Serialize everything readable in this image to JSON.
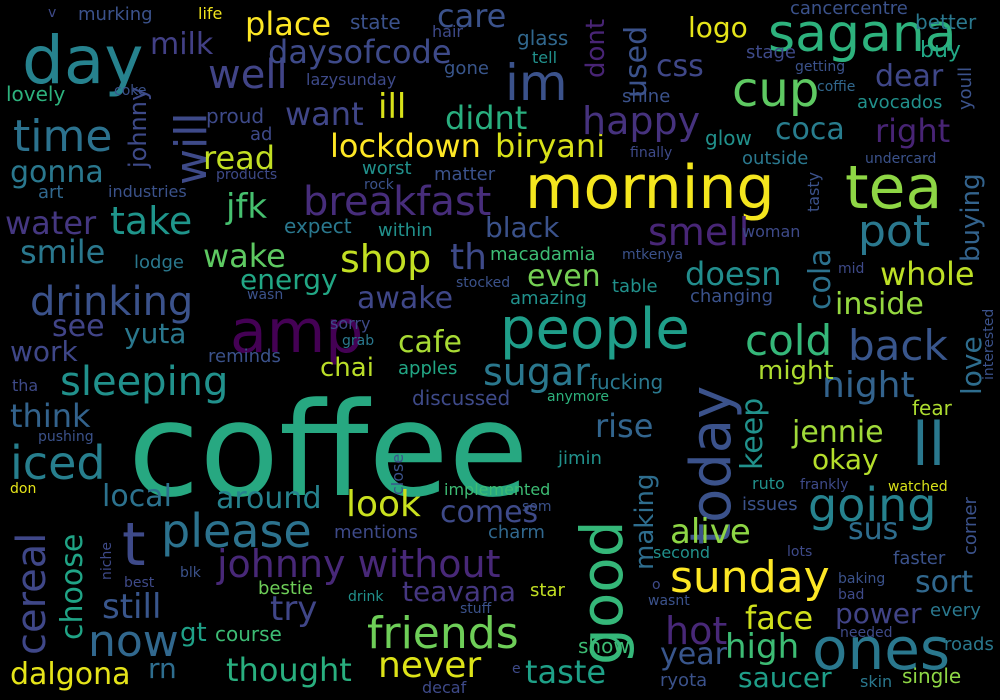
{
  "words": [
    {
      "text": "coffee",
      "color": "#27a881"
    },
    {
      "text": "morning",
      "color": "#f4e61e"
    },
    {
      "text": "tea",
      "color": "#8ed645"
    },
    {
      "text": "people",
      "color": "#1f9e89"
    },
    {
      "text": "day",
      "color": "#26828e"
    },
    {
      "text": "amp",
      "color": "#440154"
    },
    {
      "text": "sagana",
      "color": "#2db27d"
    },
    {
      "text": "good",
      "color": "#35b779"
    },
    {
      "text": "today",
      "color": "#3b528b"
    },
    {
      "text": "ones",
      "color": "#2a788e"
    },
    {
      "text": "sunday",
      "color": "#fde725"
    },
    {
      "text": "friends",
      "color": "#6ece58"
    },
    {
      "text": "please",
      "color": "#2c728e"
    },
    {
      "text": "t",
      "color": "#3e4a89"
    },
    {
      "text": "ll",
      "color": "#2a788e"
    },
    {
      "text": "going",
      "color": "#26828e"
    },
    {
      "text": "im",
      "color": "#3b528b"
    },
    {
      "text": "cup",
      "color": "#5ec962"
    },
    {
      "text": "time",
      "color": "#2c728e"
    },
    {
      "text": "breakfast",
      "color": "#472d7b"
    },
    {
      "text": "johnny without",
      "color": "#482878"
    },
    {
      "text": "well",
      "color": "#414487"
    },
    {
      "text": "will",
      "color": "#3e4a89"
    },
    {
      "text": "drinking",
      "color": "#3b528b"
    },
    {
      "text": "sleeping",
      "color": "#21918c"
    },
    {
      "text": "iced",
      "color": "#277f8e"
    },
    {
      "text": "now",
      "color": "#31688e"
    },
    {
      "text": "cereal",
      "color": "#3f4788"
    },
    {
      "text": "lockdown",
      "color": "#fde725"
    },
    {
      "text": "biryani",
      "color": "#d8e219"
    },
    {
      "text": "happy",
      "color": "#46327e"
    },
    {
      "text": "smell",
      "color": "#482677"
    },
    {
      "text": "pot",
      "color": "#2a788e"
    },
    {
      "text": "cold",
      "color": "#35b779"
    },
    {
      "text": "back",
      "color": "#39568c"
    },
    {
      "text": "night",
      "color": "#33638d"
    },
    {
      "text": "jennie",
      "color": "#a0da39"
    },
    {
      "text": "okay",
      "color": "#b5de2b"
    },
    {
      "text": "keep",
      "color": "#21918c"
    },
    {
      "text": "might",
      "color": "#addc30"
    },
    {
      "text": "love",
      "color": "#2e6d8e"
    },
    {
      "text": "inside",
      "color": "#95d840"
    },
    {
      "text": "whole",
      "color": "#bddf26"
    },
    {
      "text": "cola",
      "color": "#2c728e"
    },
    {
      "text": "coca",
      "color": "#287d8e"
    },
    {
      "text": "right",
      "color": "#482475"
    },
    {
      "text": "dear",
      "color": "#3f4788"
    },
    {
      "text": "buying",
      "color": "#33638d"
    },
    {
      "text": "take",
      "color": "#1f958b"
    },
    {
      "text": "jfk",
      "color": "#46c06f"
    },
    {
      "text": "shop",
      "color": "#c2df23"
    },
    {
      "text": "th",
      "color": "#3e4a89"
    },
    {
      "text": "wake",
      "color": "#5ec962"
    },
    {
      "text": "energy",
      "color": "#22a785"
    },
    {
      "text": "awake",
      "color": "#3f4788"
    },
    {
      "text": "sugar",
      "color": "#2a788e"
    },
    {
      "text": "look",
      "color": "#cae11f"
    },
    {
      "text": "local",
      "color": "#2c728e"
    },
    {
      "text": "around",
      "color": "#26828e"
    },
    {
      "text": "comes",
      "color": "#3e4a89"
    },
    {
      "text": "alive",
      "color": "#8ed645"
    },
    {
      "text": "sus",
      "color": "#2e6d8e"
    },
    {
      "text": "sort",
      "color": "#31688e"
    },
    {
      "text": "face",
      "color": "#d0e11c"
    },
    {
      "text": "hot",
      "color": "#482878"
    },
    {
      "text": "high",
      "color": "#3dbc74"
    },
    {
      "text": "power",
      "color": "#414487"
    },
    {
      "text": "year",
      "color": "#39568c"
    },
    {
      "text": "saucer",
      "color": "#1f9e89"
    },
    {
      "text": "taste",
      "color": "#1fa188"
    },
    {
      "text": "never",
      "color": "#dde318"
    },
    {
      "text": "thought",
      "color": "#29af7f"
    },
    {
      "text": "dalgona",
      "color": "#e5e419"
    },
    {
      "text": "rn",
      "color": "#2e6d8e"
    },
    {
      "text": "gt",
      "color": "#1fa188"
    },
    {
      "text": "course",
      "color": "#3dbc74"
    },
    {
      "text": "try",
      "color": "#404688"
    },
    {
      "text": "still",
      "color": "#39568c"
    },
    {
      "text": "choose",
      "color": "#20a486"
    },
    {
      "text": "teavana",
      "color": "#453781"
    },
    {
      "text": "making",
      "color": "#2e6d8e"
    },
    {
      "text": "rise",
      "color": "#32658e"
    },
    {
      "text": "even",
      "color": "#75d054"
    },
    {
      "text": "doesn",
      "color": "#228d8d"
    },
    {
      "text": "cafe",
      "color": "#a8db34"
    },
    {
      "text": "chai",
      "color": "#bade28"
    },
    {
      "text": "work",
      "color": "#3f4788"
    },
    {
      "text": "think",
      "color": "#33638d"
    },
    {
      "text": "see",
      "color": "#414487"
    },
    {
      "text": "yuta",
      "color": "#2a788e"
    },
    {
      "text": "smile",
      "color": "#2a788e"
    },
    {
      "text": "water",
      "color": "#453781"
    },
    {
      "text": "gonna",
      "color": "#2a788e"
    },
    {
      "text": "read",
      "color": "#c2df23"
    },
    {
      "text": "want",
      "color": "#404688"
    },
    {
      "text": "ill",
      "color": "#d8e219"
    },
    {
      "text": "didnt",
      "color": "#29af7f"
    },
    {
      "text": "milk",
      "color": "#424086"
    },
    {
      "text": "place",
      "color": "#fde725"
    },
    {
      "text": "daysofcode",
      "color": "#3e4a89"
    },
    {
      "text": "care",
      "color": "#3b528b"
    },
    {
      "text": "dont",
      "color": "#482475"
    },
    {
      "text": "used",
      "color": "#3b528b"
    },
    {
      "text": "css",
      "color": "#3f4788"
    },
    {
      "text": "logo",
      "color": "#e5e419"
    },
    {
      "text": "johnny",
      "color": "#3e4a89"
    },
    {
      "text": "murking",
      "color": "#3b528b"
    },
    {
      "text": "life",
      "color": "#f1e51d"
    },
    {
      "text": "v",
      "color": "#3e4a89"
    },
    {
      "text": "state",
      "color": "#3b528b"
    },
    {
      "text": "hair",
      "color": "#3e4a89"
    },
    {
      "text": "glass",
      "color": "#31688e"
    },
    {
      "text": "tell",
      "color": "#21918c"
    },
    {
      "text": "gone",
      "color": "#39568c"
    },
    {
      "text": "cancercentre",
      "color": "#3b528b"
    },
    {
      "text": "better",
      "color": "#2a788e"
    },
    {
      "text": "stage",
      "color": "#3e4a89"
    },
    {
      "text": "buy",
      "color": "#22a785"
    },
    {
      "text": "getting",
      "color": "#3b528b"
    },
    {
      "text": "coffie",
      "color": "#31688e"
    },
    {
      "text": "avocados",
      "color": "#21918c"
    },
    {
      "text": "youll",
      "color": "#3b528b"
    },
    {
      "text": "lazysunday",
      "color": "#3e4a89"
    },
    {
      "text": "lovely",
      "color": "#2db27d"
    },
    {
      "text": "coke",
      "color": "#3b528b"
    },
    {
      "text": "proud",
      "color": "#3e4a89"
    },
    {
      "text": "ad",
      "color": "#3e4a89"
    },
    {
      "text": "shine",
      "color": "#3b528b"
    },
    {
      "text": "glow",
      "color": "#21918c"
    },
    {
      "text": "finally",
      "color": "#3e4a89"
    },
    {
      "text": "outside",
      "color": "#2a788e"
    },
    {
      "text": "undercard",
      "color": "#3b528b"
    },
    {
      "text": "tasty",
      "color": "#3b528b"
    },
    {
      "text": "art",
      "color": "#31688e"
    },
    {
      "text": "industries",
      "color": "#3b528b"
    },
    {
      "text": "products",
      "color": "#3e4a89"
    },
    {
      "text": "rock",
      "color": "#3b528b"
    },
    {
      "text": "worst",
      "color": "#21918c"
    },
    {
      "text": "matter",
      "color": "#3b528b"
    },
    {
      "text": "expect",
      "color": "#2a788e"
    },
    {
      "text": "within",
      "color": "#21918c"
    },
    {
      "text": "black",
      "color": "#3b528b"
    },
    {
      "text": "macadamia",
      "color": "#3dbc74"
    },
    {
      "text": "mtkenya",
      "color": "#3b528b"
    },
    {
      "text": "woman",
      "color": "#3e4a89"
    },
    {
      "text": "lodge",
      "color": "#2a788e"
    },
    {
      "text": "stocked",
      "color": "#3b528b"
    },
    {
      "text": "table",
      "color": "#21918c"
    },
    {
      "text": "changing",
      "color": "#3b528b"
    },
    {
      "text": "mid",
      "color": "#3e4a89"
    },
    {
      "text": "wasn",
      "color": "#3b528b"
    },
    {
      "text": "amazing",
      "color": "#21918c"
    },
    {
      "text": "sorry",
      "color": "#3e4a89"
    },
    {
      "text": "grab",
      "color": "#2a788e"
    },
    {
      "text": "reminds",
      "color": "#3b528b"
    },
    {
      "text": "apples",
      "color": "#22a785"
    },
    {
      "text": "discussed",
      "color": "#3e4a89"
    },
    {
      "text": "anymore",
      "color": "#2db27d"
    },
    {
      "text": "fucking",
      "color": "#2a788e"
    },
    {
      "text": "fear",
      "color": "#addc30"
    },
    {
      "text": "interested",
      "color": "#3b528b"
    },
    {
      "text": "tha",
      "color": "#3e4a89"
    },
    {
      "text": "pushing",
      "color": "#3b528b"
    },
    {
      "text": "don",
      "color": "#e5e419"
    },
    {
      "text": "close",
      "color": "#3b528b"
    },
    {
      "text": "jimin",
      "color": "#21918c"
    },
    {
      "text": "implemented",
      "color": "#3dbc74"
    },
    {
      "text": "mentions",
      "color": "#3e4a89"
    },
    {
      "text": "som",
      "color": "#3b528b"
    },
    {
      "text": "charm",
      "color": "#31688e"
    },
    {
      "text": "ruto",
      "color": "#21918c"
    },
    {
      "text": "frankly",
      "color": "#3e4a89"
    },
    {
      "text": "watched",
      "color": "#d8e219"
    },
    {
      "text": "issues",
      "color": "#3b528b"
    },
    {
      "text": "corner",
      "color": "#3b528b"
    },
    {
      "text": "niche",
      "color": "#3e4a89"
    },
    {
      "text": "second",
      "color": "#21918c"
    },
    {
      "text": "lots",
      "color": "#3e4a89"
    },
    {
      "text": "faster",
      "color": "#3b528b"
    },
    {
      "text": "best",
      "color": "#3e4a89"
    },
    {
      "text": "blk",
      "color": "#3b528b"
    },
    {
      "text": "bestie",
      "color": "#6ece58"
    },
    {
      "text": "drink",
      "color": "#21918c"
    },
    {
      "text": "o",
      "color": "#3e4a89"
    },
    {
      "text": "baking",
      "color": "#3b528b"
    },
    {
      "text": "bad",
      "color": "#3e4a89"
    },
    {
      "text": "wasnt",
      "color": "#3b528b"
    },
    {
      "text": "every",
      "color": "#2a788e"
    },
    {
      "text": "stuff",
      "color": "#3b528b"
    },
    {
      "text": "star",
      "color": "#c2df23"
    },
    {
      "text": "needed",
      "color": "#3e4a89"
    },
    {
      "text": "roads",
      "color": "#2a788e"
    },
    {
      "text": "show",
      "color": "#3dbc74"
    },
    {
      "text": "e",
      "color": "#3e4a89"
    },
    {
      "text": "ryota",
      "color": "#3b528b"
    },
    {
      "text": "skin",
      "color": "#2a788e"
    },
    {
      "text": "single",
      "color": "#8ed645"
    },
    {
      "text": "decaf",
      "color": "#3e4a89"
    }
  ]
}
